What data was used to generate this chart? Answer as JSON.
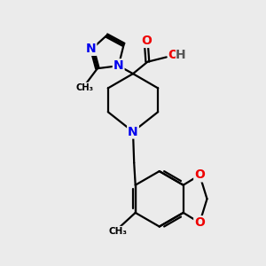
{
  "background_color": "#ebebeb",
  "atom_colors": {
    "N": "#0000ee",
    "O": "#ee0000",
    "C": "#000000",
    "H": "#555555"
  },
  "bond_color": "#000000",
  "bond_width": 1.6,
  "font_size_atoms": 10,
  "font_size_small": 8.5
}
